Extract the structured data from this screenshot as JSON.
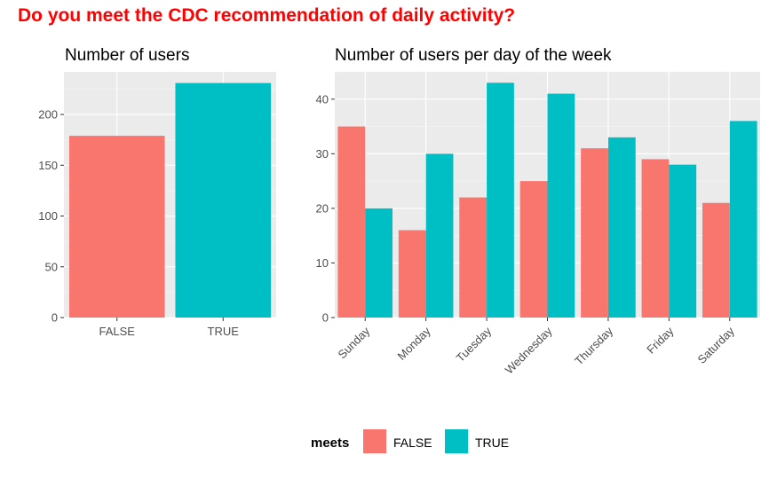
{
  "suptitle": "Do you meet the CDC recommendation of daily activity?",
  "colors": {
    "FALSE": "#F8766D",
    "TRUE": "#00BFC4",
    "panel": "#EBEBEB",
    "grid_major": "#FFFFFF"
  },
  "chart_data": [
    {
      "type": "bar",
      "title": "Number of users",
      "categories": [
        "FALSE",
        "TRUE"
      ],
      "values": [
        179,
        231
      ],
      "yticks": [
        0,
        50,
        100,
        150,
        200
      ],
      "ylim": [
        0,
        242
      ],
      "grid": true
    },
    {
      "type": "bar",
      "title": "Number of users per day of the week",
      "categories": [
        "Sunday",
        "Monday",
        "Tuesday",
        "Wednesday",
        "Thursday",
        "Friday",
        "Saturday"
      ],
      "series": [
        {
          "name": "FALSE",
          "values": [
            35,
            16,
            22,
            25,
            31,
            29,
            21
          ]
        },
        {
          "name": "TRUE",
          "values": [
            20,
            30,
            43,
            41,
            33,
            28,
            36
          ]
        }
      ],
      "yticks": [
        0,
        10,
        20,
        30,
        40
      ],
      "ylim": [
        0,
        45
      ],
      "grid": true
    }
  ],
  "legend": {
    "title": "meets",
    "position": "bottom",
    "entries": [
      {
        "label": "FALSE",
        "color": "#F8766D"
      },
      {
        "label": "TRUE",
        "color": "#00BFC4"
      }
    ]
  }
}
